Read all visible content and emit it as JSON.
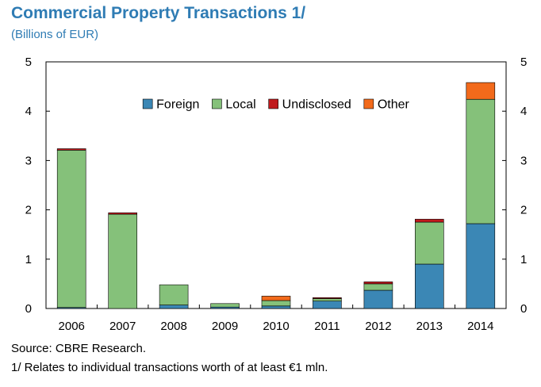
{
  "title": "Commercial Property Transactions 1/",
  "subtitle": "(Billions of EUR)",
  "source": "Source: CBRE Research.",
  "footnote": "1/ Relates to individual transactions worth of at least €1 mln.",
  "chart_data": {
    "type": "bar",
    "stacked": true,
    "categories": [
      "2006",
      "2007",
      "2008",
      "2009",
      "2010",
      "2011",
      "2012",
      "2013",
      "2014"
    ],
    "series": [
      {
        "name": "Foreign",
        "color": "#3b87b5",
        "values": [
          0.02,
          0.0,
          0.07,
          0.03,
          0.05,
          0.15,
          0.37,
          0.9,
          1.72
        ]
      },
      {
        "name": "Local",
        "color": "#85c17a",
        "values": [
          3.19,
          1.91,
          0.41,
          0.07,
          0.11,
          0.05,
          0.13,
          0.85,
          2.52
        ]
      },
      {
        "name": "Undisclosed",
        "color": "#c0191c",
        "values": [
          0.03,
          0.03,
          0.0,
          0.0,
          0.0,
          0.02,
          0.04,
          0.06,
          0.0
        ]
      },
      {
        "name": "Other",
        "color": "#f26a1b",
        "values": [
          0.0,
          0.0,
          0.0,
          0.0,
          0.09,
          0.0,
          0.0,
          0.0,
          0.34
        ]
      }
    ],
    "ylim": [
      0,
      5
    ],
    "yticks": [
      0,
      1,
      2,
      3,
      4,
      5
    ],
    "secondary_yticks": [
      0,
      1,
      2,
      3,
      4,
      5
    ],
    "legend_position": "top-center",
    "grid": false
  }
}
